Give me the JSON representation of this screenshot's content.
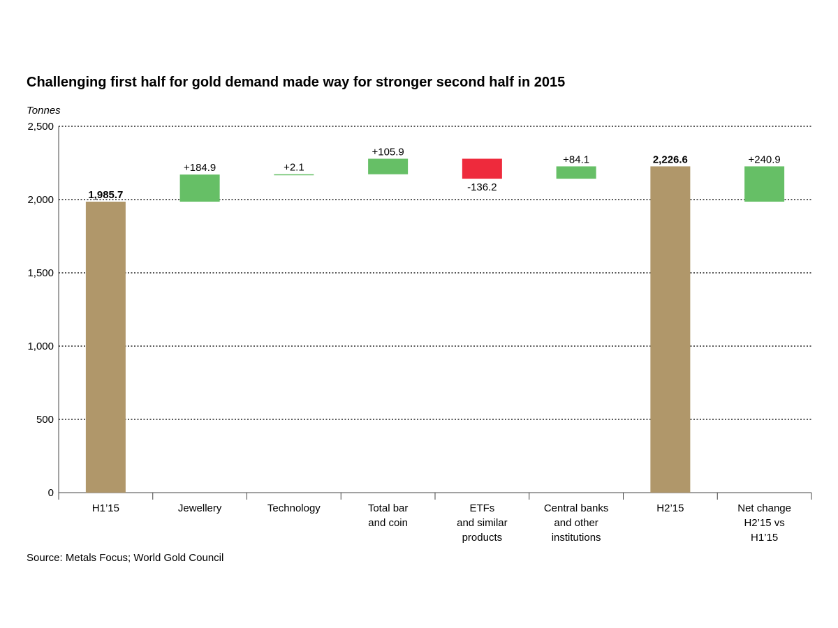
{
  "chart_data": {
    "type": "bar",
    "subtype": "waterfall",
    "title": "Challenging first half for gold demand made way for stronger second half in 2015",
    "ylabel": "Tonnes",
    "xlabel": "",
    "ylim": [
      0,
      2500
    ],
    "yticks": [
      0,
      500,
      1000,
      1500,
      2000,
      2500
    ],
    "ytick_labels": [
      "0",
      "500",
      "1,000",
      "1,500",
      "2,000",
      "2,500"
    ],
    "grid": true,
    "legend": "none",
    "categories": [
      [
        "H1’15"
      ],
      [
        "Jewellery"
      ],
      [
        "Technology"
      ],
      [
        "Total bar",
        "and coin"
      ],
      [
        "ETFs",
        "and similar",
        "products"
      ],
      [
        "Central banks",
        "and other",
        "institutions"
      ],
      [
        "H2’15"
      ],
      [
        "Net change",
        "H2’15 vs",
        "H1’15"
      ]
    ],
    "bars": [
      {
        "kind": "total",
        "start": 0,
        "end": 1985.7,
        "label": "1,985.7"
      },
      {
        "kind": "increase",
        "start": 1985.7,
        "end": 2170.6,
        "label": "+184.9"
      },
      {
        "kind": "increase",
        "start": 2170.6,
        "end": 2172.7,
        "label": "+2.1"
      },
      {
        "kind": "increase",
        "start": 2172.7,
        "end": 2278.6,
        "label": "+105.9"
      },
      {
        "kind": "decrease",
        "start": 2278.6,
        "end": 2142.4,
        "label": "-136.2"
      },
      {
        "kind": "increase",
        "start": 2142.4,
        "end": 2226.5,
        "label": "+84.1"
      },
      {
        "kind": "total",
        "start": 0,
        "end": 2226.6,
        "label": "2,226.6"
      },
      {
        "kind": "increase",
        "start": 1985.7,
        "end": 2226.6,
        "label": "+240.9"
      }
    ],
    "colors": {
      "total": "#b0976a",
      "increase": "#66bf66",
      "decrease": "#ee2a3c"
    }
  },
  "source": "Source: Metals Focus; World Gold Council"
}
